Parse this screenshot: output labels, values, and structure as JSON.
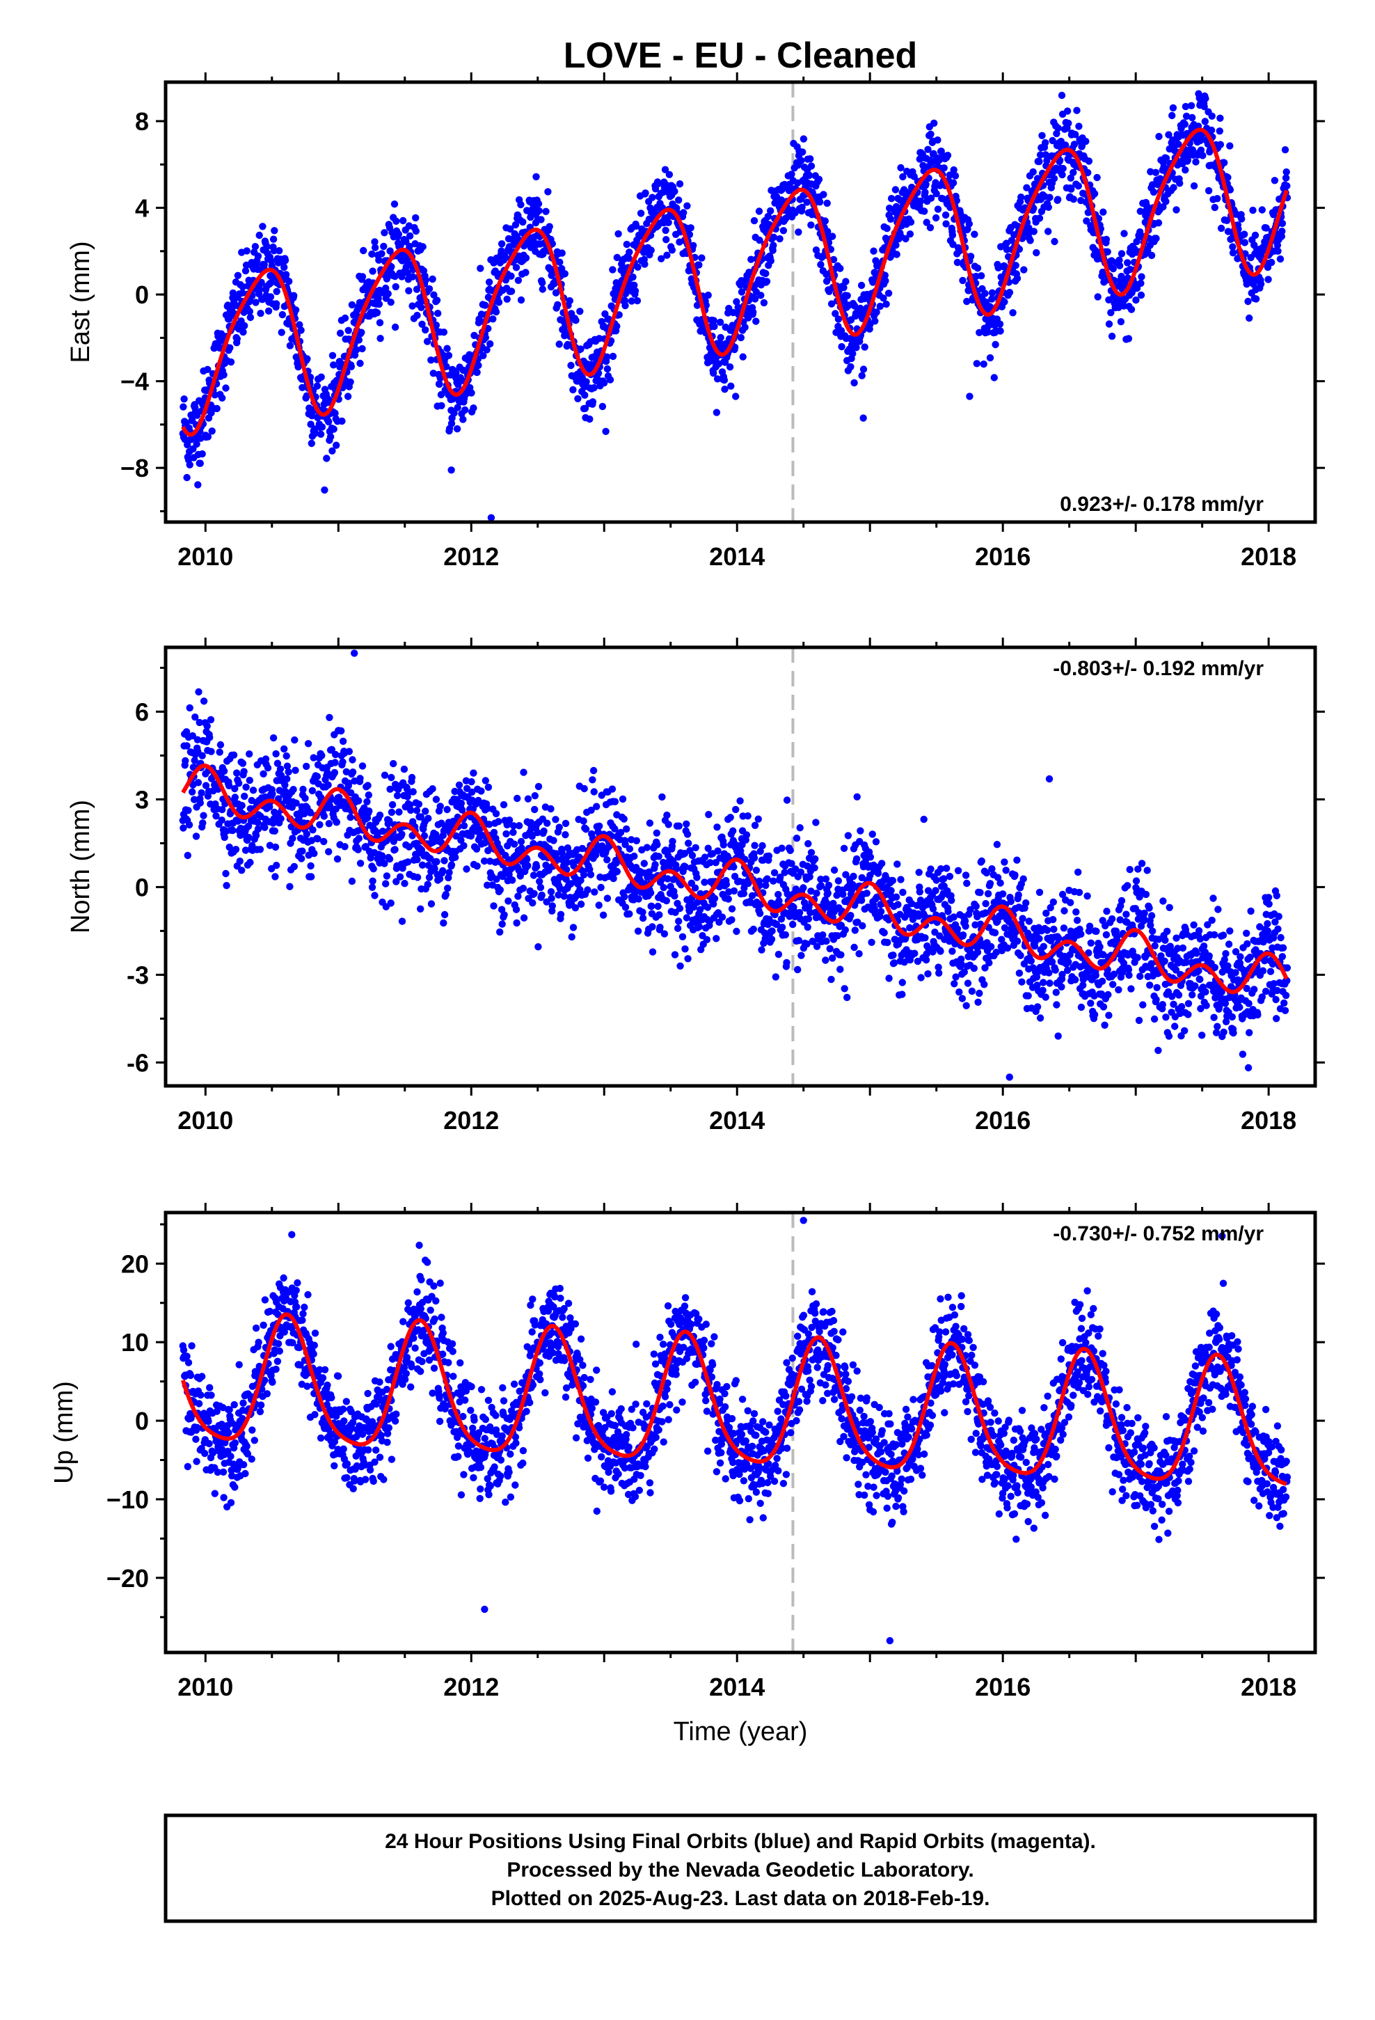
{
  "title": "LOVE  - EU - Cleaned",
  "xlabel": "Time (year)",
  "footer": {
    "line1": "24 Hour Positions Using Final Orbits (blue) and Rapid Orbits (magenta).",
    "line2": "Processed by the Nevada Geodetic Laboratory.",
    "line3": "Plotted on 2025-Aug-23. Last data on 2018-Feb-19."
  },
  "colors": {
    "points": "#0000ff",
    "fit": "#ff0000",
    "marker_line": "#bbbbbb",
    "frame": "#000000"
  },
  "chart_data": [
    {
      "type": "scatter",
      "ylabel": "East (mm)",
      "rate_text": "0.923+/- 0.178 mm/yr",
      "xlim": [
        2009.7,
        2018.35
      ],
      "ylim": [
        -10.5,
        9.8
      ],
      "xticks": [
        2010,
        2012,
        2014,
        2016,
        2018
      ],
      "yticks": [
        -8,
        -4,
        0,
        4,
        8
      ],
      "ytick_labels": [
        "−8",
        "−4",
        "0",
        "4",
        "8"
      ],
      "vertical_marker_x": 2014.42,
      "data_span": [
        2009.83,
        2018.14
      ],
      "fit": {
        "trend_mm_per_yr": 0.923,
        "offset_at_2010": -2.5,
        "annual_amplitude": 3.4,
        "annual_peak_year_fraction": 0.42,
        "semiannual_amplitude": 0.6,
        "semiannual_phase": 0.1
      },
      "scatter_sigma": 1.0,
      "outliers": [
        [
          2012.15,
          -10.3
        ],
        [
          2011.85,
          -8.1
        ],
        [
          2015.75,
          -4.7
        ],
        [
          2014.95,
          -5.7
        ]
      ]
    },
    {
      "type": "scatter",
      "ylabel": "North (mm)",
      "rate_text": "-0.803+/- 0.192 mm/yr",
      "xlim": [
        2009.7,
        2018.35
      ],
      "ylim": [
        -6.8,
        8.2
      ],
      "xticks": [
        2010,
        2012,
        2014,
        2016,
        2018
      ],
      "yticks": [
        -6,
        -3,
        0,
        3,
        6
      ],
      "ytick_labels": [
        "-6",
        "-3",
        "0",
        "3",
        "6"
      ],
      "vertical_marker_x": 2014.42,
      "data_span": [
        2009.83,
        2018.14
      ],
      "fit": {
        "trend_mm_per_yr": -0.803,
        "offset_at_2010": 3.2,
        "annual_amplitude": 0.4,
        "annual_peak_year_fraction": 0.0,
        "semiannual_amplitude": 0.55,
        "semiannual_phase": 0.0
      },
      "scatter_sigma": 1.0,
      "outliers": [
        [
          2011.12,
          8.0
        ],
        [
          2016.05,
          -6.5
        ],
        [
          2016.35,
          3.7
        ],
        [
          2017.25,
          -5.1
        ]
      ]
    },
    {
      "type": "scatter",
      "ylabel": "Up (mm)",
      "rate_text": "-0.730+/- 0.752 mm/yr",
      "xlim": [
        2009.7,
        2018.35
      ],
      "ylim": [
        -29.5,
        26.5
      ],
      "xticks": [
        2010,
        2012,
        2014,
        2016,
        2018
      ],
      "yticks": [
        -20,
        -10,
        0,
        10,
        20
      ],
      "ytick_labels": [
        "−20",
        "−10",
        "0",
        "10",
        "20"
      ],
      "vertical_marker_x": 2014.42,
      "data_span": [
        2009.83,
        2018.14
      ],
      "fit": {
        "trend_mm_per_yr": -0.73,
        "offset_at_2010": 4.5,
        "annual_amplitude": 8.0,
        "annual_peak_year_fraction": 0.62,
        "semiannual_amplitude": 1.5,
        "semiannual_phase": 0.1
      },
      "scatter_sigma": 3.2,
      "outliers": [
        [
          2014.5,
          25.5
        ],
        [
          2015.15,
          -28.0
        ],
        [
          2017.65,
          23.5
        ],
        [
          2012.1,
          -24.0
        ]
      ]
    }
  ]
}
